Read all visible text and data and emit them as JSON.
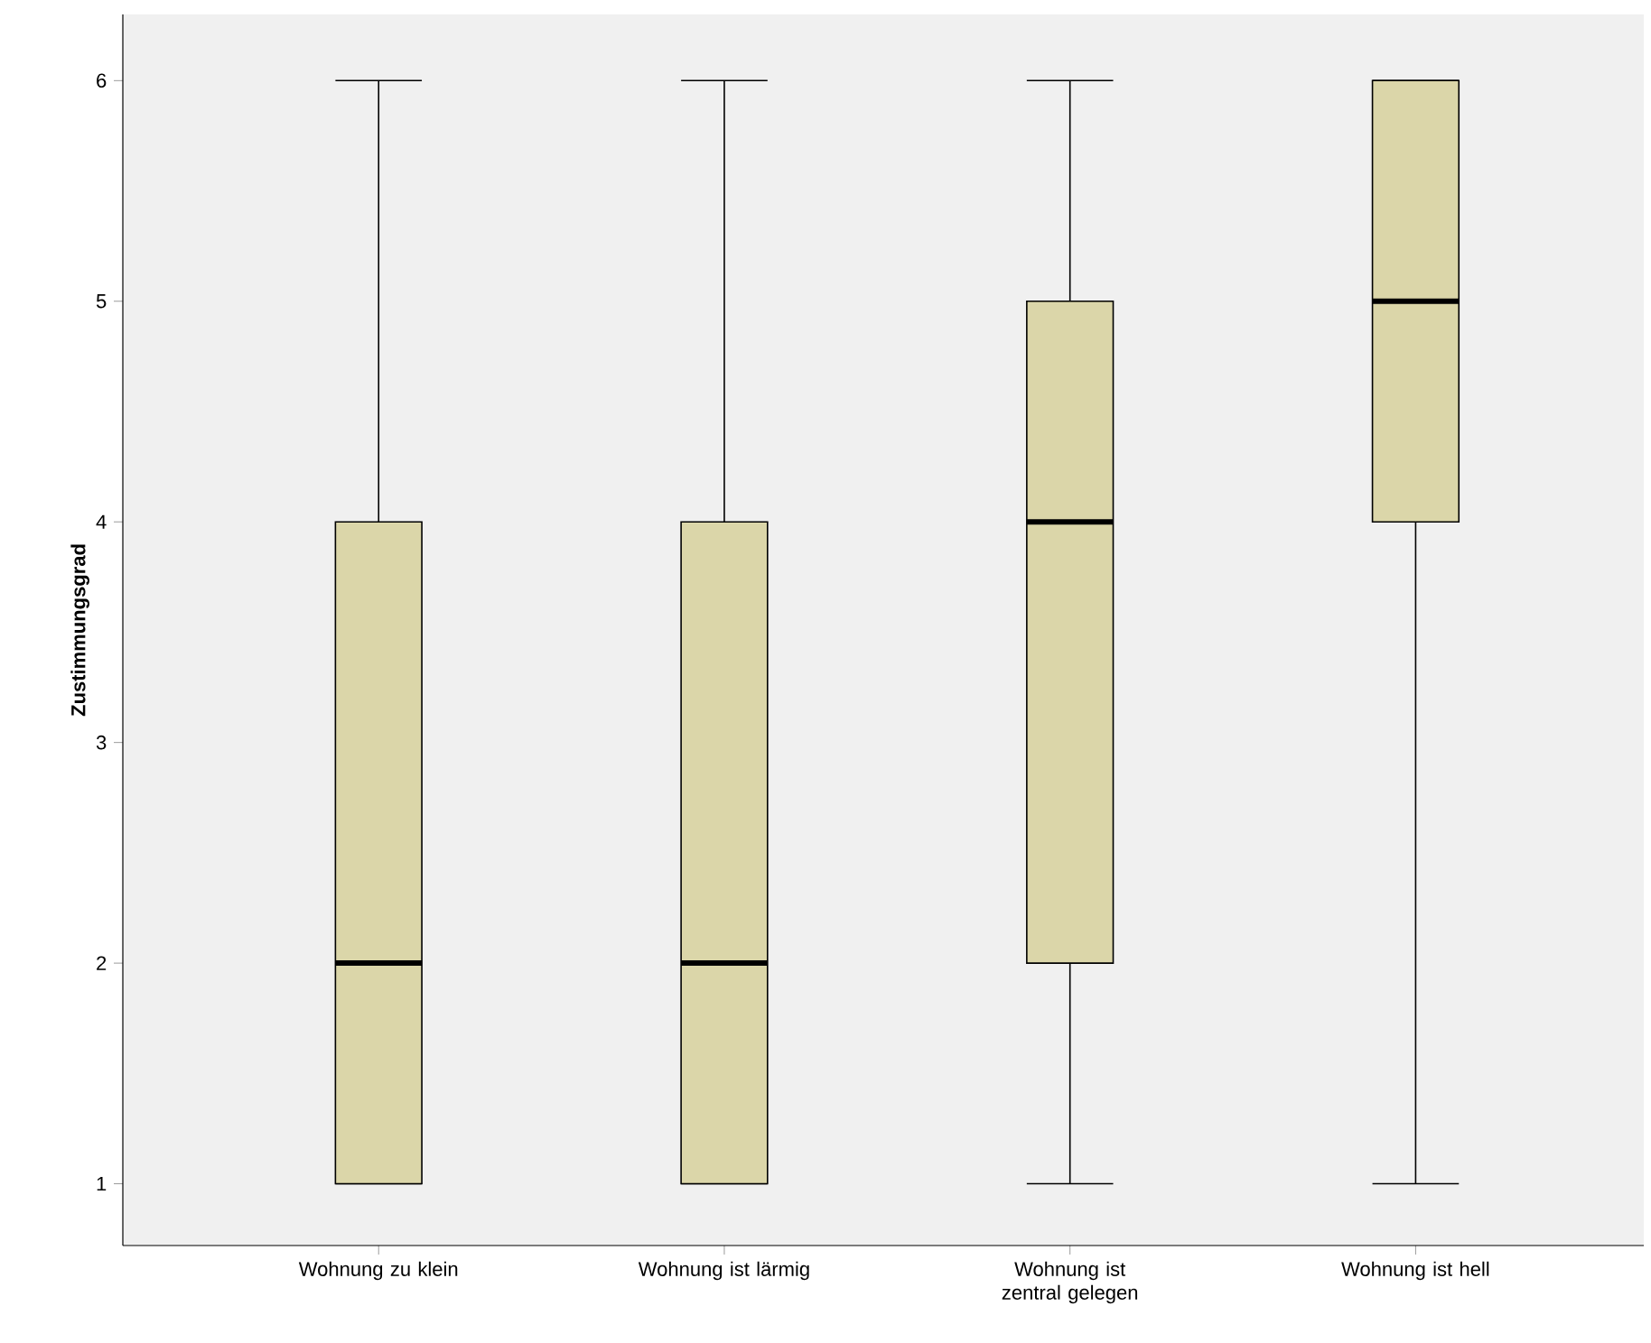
{
  "chart_data": {
    "type": "box",
    "ylabel": "Zustimmungsgrad",
    "categories": [
      "Wohnung zu klein",
      "Wohnung ist lärmig",
      "Wohnung ist zentral gelegen",
      "Wohnung ist hell"
    ],
    "color": "#dbd6a9",
    "ylim": [
      0.72,
      6.3
    ],
    "yticks": [
      1,
      2,
      3,
      4,
      5,
      6
    ],
    "boxes": [
      {
        "low": 1,
        "q1": 1,
        "median": 2,
        "q3": 4,
        "high": 6
      },
      {
        "low": 1,
        "q1": 1,
        "median": 2,
        "q3": 4,
        "high": 6
      },
      {
        "low": 1,
        "q1": 2,
        "median": 4,
        "q3": 5,
        "high": 6
      },
      {
        "low": 1,
        "q1": 4,
        "median": 5,
        "q3": 6,
        "high": 6
      }
    ]
  }
}
